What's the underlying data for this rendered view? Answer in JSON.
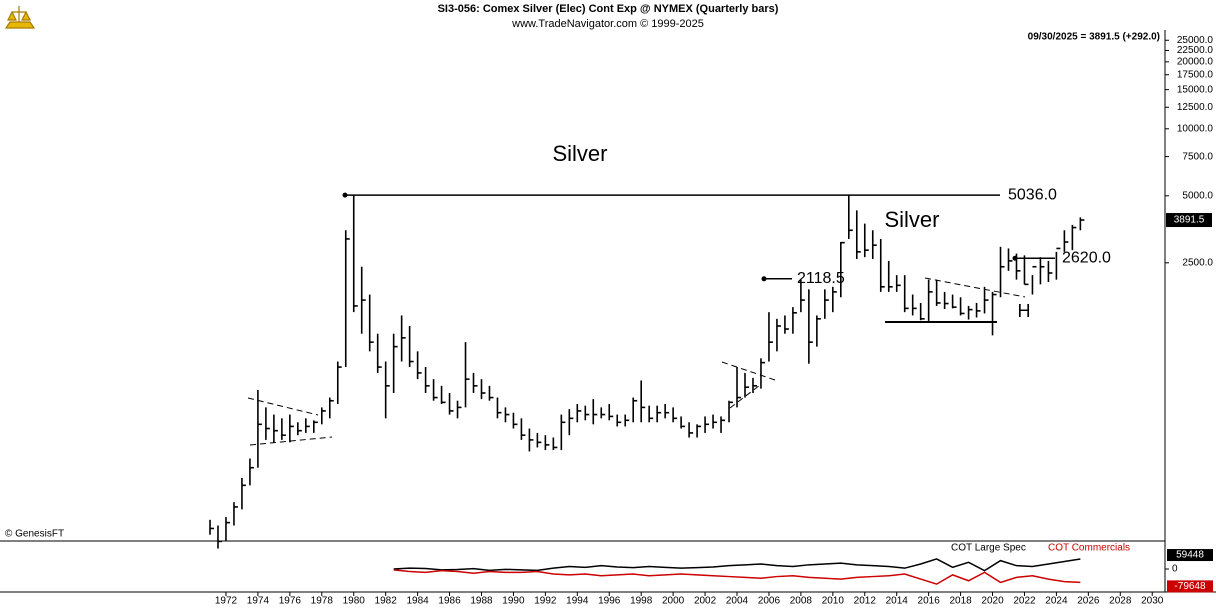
{
  "chart_data": [
    {
      "type": "ohlc",
      "title": "SI3-056:  Comex Silver (Elec) Cont Exp @ NYMEX  (Quarterly bars)",
      "subtitle": "www.TradeNavigator.com © 1999-2025",
      "header_note": "09/30/2025 = 3891.5 (+292.0)",
      "watermark": "© GenesisFT",
      "annotations": [
        "Silver",
        "Silver",
        "H"
      ],
      "log_scale": true,
      "color": "#000000",
      "xlim": [
        1957.85,
        2030.8
      ],
      "ylim": [
        142,
        27800
      ],
      "xticks": [
        1972,
        1974,
        1976,
        1978,
        1980,
        1982,
        1984,
        1986,
        1988,
        1990,
        1992,
        1994,
        1996,
        1998,
        2000,
        2002,
        2004,
        2006,
        2008,
        2010,
        2012,
        2014,
        2016,
        2018,
        2020,
        2022,
        2024,
        2026,
        2028,
        2030
      ],
      "yticks": [
        {
          "value": 25000,
          "label": "25000.0"
        },
        {
          "value": 22500,
          "label": "22500.0"
        },
        {
          "value": 20000,
          "label": "20000.0"
        },
        {
          "value": 17500,
          "label": "17500.0"
        },
        {
          "value": 15000,
          "label": "15000.0"
        },
        {
          "value": 12500,
          "label": "12500.0"
        },
        {
          "value": 10000,
          "label": "10000.0"
        },
        {
          "value": 7500,
          "label": "7500.0"
        },
        {
          "value": 5000,
          "label": "5000.0"
        },
        {
          "value": 2500,
          "label": "2500.0"
        }
      ],
      "levels": [
        {
          "value": 5036,
          "label": "5036.0"
        },
        {
          "value": 2118.5,
          "label": "2118.5"
        },
        {
          "value": 2620,
          "label": "2620.0"
        }
      ],
      "x": [
        1971.0,
        1971.5,
        1972.0,
        1972.5,
        1973.0,
        1973.5,
        1974.0,
        1974.5,
        1975.0,
        1975.5,
        1976.0,
        1976.5,
        1977.0,
        1977.5,
        1978.0,
        1978.5,
        1979.0,
        1979.5,
        1980.0,
        1980.5,
        1981.0,
        1981.5,
        1982.0,
        1982.5,
        1983.0,
        1983.5,
        1984.0,
        1984.5,
        1985.0,
        1985.5,
        1986.0,
        1986.5,
        1987.0,
        1987.5,
        1988.0,
        1988.5,
        1989.0,
        1989.5,
        1990.0,
        1990.5,
        1991.0,
        1991.5,
        1992.0,
        1992.5,
        1993.0,
        1993.5,
        1994.0,
        1994.5,
        1995.0,
        1995.5,
        1996.0,
        1996.5,
        1997.0,
        1997.5,
        1998.0,
        1998.5,
        1999.0,
        1999.5,
        2000.0,
        2000.5,
        2001.0,
        2001.5,
        2002.0,
        2002.5,
        2003.0,
        2003.5,
        2004.0,
        2004.5,
        2005.0,
        2005.5,
        2006.0,
        2006.5,
        2007.0,
        2007.5,
        2008.0,
        2008.5,
        2009.0,
        2009.5,
        2010.0,
        2010.5,
        2011.0,
        2011.5,
        2012.0,
        2012.5,
        2013.0,
        2013.5,
        2014.0,
        2014.5,
        2015.0,
        2015.5,
        2016.0,
        2016.5,
        2017.0,
        2017.5,
        2018.0,
        2018.5,
        2019.0,
        2019.5,
        2020.0,
        2020.5,
        2021.0,
        2021.5,
        2022.0,
        2022.5,
        2023.0,
        2023.5,
        2024.0,
        2024.5,
        2025.0,
        2025.5
      ],
      "high": [
        175,
        165,
        180,
        210,
        270,
        330,
        670,
        560,
        520,
        500,
        520,
        480,
        500,
        490,
        560,
        620,
        900,
        3500,
        5036,
        2400,
        1800,
        1200,
        900,
        1200,
        1450,
        1300,
        1000,
        850,
        750,
        700,
        650,
        600,
        1100,
        800,
        750,
        700,
        620,
        560,
        530,
        500,
        450,
        430,
        420,
        410,
        520,
        550,
        580,
        570,
        610,
        560,
        580,
        520,
        520,
        620,
        740,
        570,
        570,
        580,
        560,
        510,
        480,
        470,
        510,
        520,
        510,
        600,
        850,
        800,
        760,
        930,
        1500,
        1400,
        1450,
        1580,
        2100,
        1900,
        1450,
        1900,
        1950,
        3100,
        5036,
        4300,
        3750,
        3500,
        3200,
        2550,
        2200,
        2200,
        1800,
        1650,
        2100,
        2100,
        1850,
        1800,
        1750,
        1600,
        1650,
        1950,
        1850,
        2950,
        2900,
        2750,
        2700,
        2200,
        2650,
        2550,
        2800,
        3500,
        3700,
        4000
      ],
      "low": [
        150,
        130,
        140,
        165,
        195,
        250,
        300,
        400,
        390,
        400,
        390,
        420,
        430,
        430,
        470,
        500,
        580,
        850,
        1500,
        1200,
        1000,
        800,
        500,
        650,
        900,
        850,
        750,
        650,
        600,
        580,
        520,
        500,
        560,
        650,
        610,
        600,
        500,
        480,
        450,
        400,
        355,
        370,
        360,
        360,
        360,
        420,
        480,
        490,
        470,
        500,
        490,
        460,
        460,
        480,
        480,
        480,
        480,
        500,
        480,
        450,
        410,
        410,
        430,
        450,
        430,
        480,
        560,
        620,
        650,
        680,
        900,
        1000,
        1200,
        1200,
        1500,
        880,
        1050,
        1400,
        1500,
        1750,
        3200,
        2600,
        2650,
        2600,
        1850,
        1850,
        1850,
        1500,
        1450,
        1380,
        1370,
        1600,
        1550,
        1560,
        1450,
        1390,
        1420,
        1480,
        1180,
        1750,
        2300,
        2100,
        2000,
        1800,
        2000,
        2050,
        2100,
        2800,
        2850,
        3500
      ],
      "close": [
        160,
        140,
        170,
        200,
        250,
        300,
        470,
        450,
        440,
        420,
        460,
        440,
        460,
        480,
        540,
        600,
        850,
        3200,
        1600,
        1700,
        1100,
        850,
        700,
        1050,
        1150,
        900,
        800,
        700,
        620,
        590,
        540,
        560,
        750,
        700,
        650,
        620,
        530,
        520,
        470,
        420,
        400,
        390,
        380,
        370,
        480,
        500,
        540,
        520,
        520,
        520,
        510,
        480,
        490,
        600,
        560,
        500,
        530,
        530,
        500,
        460,
        430,
        460,
        470,
        480,
        490,
        590,
        620,
        690,
        700,
        890,
        1100,
        1300,
        1260,
        1490,
        1700,
        1100,
        1400,
        1700,
        1850,
        3080,
        3500,
        2800,
        2850,
        3000,
        1950,
        1950,
        1980,
        1560,
        1560,
        1400,
        1850,
        1650,
        1640,
        1580,
        1480,
        1540,
        1520,
        1700,
        1800,
        2400,
        2550,
        2300,
        2000,
        2400,
        2400,
        2250,
        2900,
        3100,
        3600,
        3891.5
      ]
    },
    {
      "type": "line",
      "xlim": [
        1957.85,
        2030.8
      ],
      "ylim": [
        -137000,
        155000
      ],
      "yticks": [
        0
      ],
      "x": [
        1982.5,
        1983.5,
        1984.5,
        1985.5,
        1986.5,
        1987.5,
        1988.5,
        1989.5,
        1990.5,
        1991.5,
        1992.5,
        1993.5,
        1994.5,
        1995.5,
        1996.5,
        1997.5,
        1998.5,
        1999.5,
        2000.5,
        2001.5,
        2002.5,
        2003.5,
        2004.5,
        2005.5,
        2006.5,
        2007.5,
        2008.5,
        2009.5,
        2010.5,
        2011.5,
        2012.5,
        2013.5,
        2014.5,
        2015.5,
        2016.5,
        2017.5,
        2018.5,
        2019.5,
        2020.5,
        2021.5,
        2022.5,
        2023.5,
        2024.5,
        2025.5
      ],
      "series": [
        {
          "name": "COT Large Spec",
          "color": "#000000",
          "values": [
            0,
            5000,
            3000,
            -5000,
            -3000,
            2000,
            -8000,
            -2000,
            -5000,
            -8000,
            5000,
            15000,
            10000,
            20000,
            12000,
            8000,
            15000,
            10000,
            5000,
            8000,
            12000,
            20000,
            25000,
            30000,
            20000,
            15000,
            25000,
            30000,
            35000,
            25000,
            20000,
            15000,
            5000,
            30000,
            60000,
            10000,
            40000,
            -10000,
            50000,
            20000,
            15000,
            30000,
            45000,
            59448
          ]
        },
        {
          "name": "COT Commercials",
          "color": "#cc0000",
          "values": [
            -5000,
            -15000,
            -20000,
            -10000,
            -15000,
            -25000,
            -15000,
            -20000,
            -20000,
            -15000,
            -30000,
            -35000,
            -30000,
            -40000,
            -35000,
            -30000,
            -40000,
            -35000,
            -30000,
            -35000,
            -40000,
            -45000,
            -50000,
            -55000,
            -45000,
            -40000,
            -50000,
            -55000,
            -60000,
            -50000,
            -45000,
            -40000,
            -30000,
            -60000,
            -90000,
            -35000,
            -70000,
            -20000,
            -80000,
            -50000,
            -40000,
            -60000,
            -75000,
            -79648
          ]
        }
      ]
    }
  ]
}
